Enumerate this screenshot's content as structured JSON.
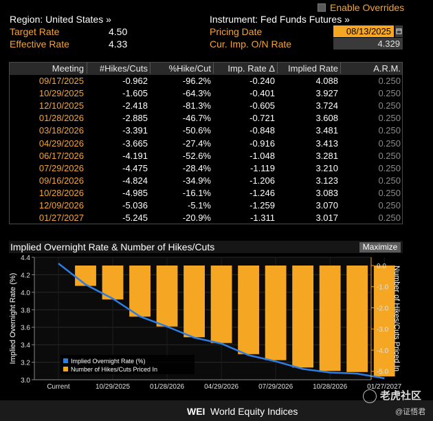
{
  "header": {
    "region_label": "Region: United States »",
    "target_rate_label": "Target Rate",
    "target_rate_value": "4.50",
    "effective_rate_label": "Effective Rate",
    "effective_rate_value": "4.33",
    "instrument_label": "Instrument: Fed Funds Futures »",
    "enable_overrides_label": "Enable Overrides",
    "pricing_date_label": "Pricing Date",
    "pricing_date_value": "08/13/2025",
    "cur_imp_label": "Cur. Imp. O/N Rate",
    "cur_imp_value": "4.329"
  },
  "table": {
    "columns": [
      "Meeting",
      "#Hikes/Cuts",
      "%Hike/Cut",
      "Imp. Rate Δ",
      "Implied Rate",
      "A.R.M."
    ],
    "rows": [
      {
        "meeting": "09/17/2025",
        "hikes": "-0.962",
        "pct": "-96.2%",
        "delta": "-0.240",
        "implied": "4.088",
        "arm": "0.250"
      },
      {
        "meeting": "10/29/2025",
        "hikes": "-1.605",
        "pct": "-64.3%",
        "delta": "-0.401",
        "implied": "3.927",
        "arm": "0.250"
      },
      {
        "meeting": "12/10/2025",
        "hikes": "-2.418",
        "pct": "-81.3%",
        "delta": "-0.605",
        "implied": "3.724",
        "arm": "0.250"
      },
      {
        "meeting": "01/28/2026",
        "hikes": "-2.885",
        "pct": "-46.7%",
        "delta": "-0.721",
        "implied": "3.608",
        "arm": "0.250"
      },
      {
        "meeting": "03/18/2026",
        "hikes": "-3.391",
        "pct": "-50.6%",
        "delta": "-0.848",
        "implied": "3.481",
        "arm": "0.250"
      },
      {
        "meeting": "04/29/2026",
        "hikes": "-3.665",
        "pct": "-27.4%",
        "delta": "-0.916",
        "implied": "3.413",
        "arm": "0.250"
      },
      {
        "meeting": "06/17/2026",
        "hikes": "-4.191",
        "pct": "-52.6%",
        "delta": "-1.048",
        "implied": "3.281",
        "arm": "0.250"
      },
      {
        "meeting": "07/29/2026",
        "hikes": "-4.475",
        "pct": "-28.4%",
        "delta": "-1.119",
        "implied": "3.210",
        "arm": "0.250"
      },
      {
        "meeting": "09/16/2026",
        "hikes": "-4.824",
        "pct": "-34.9%",
        "delta": "-1.206",
        "implied": "3.123",
        "arm": "0.250"
      },
      {
        "meeting": "10/28/2026",
        "hikes": "-4.985",
        "pct": "-16.1%",
        "delta": "-1.246",
        "implied": "3.083",
        "arm": "0.250"
      },
      {
        "meeting": "12/09/2026",
        "hikes": "-5.036",
        "pct": "-5.1%",
        "delta": "-1.259",
        "implied": "3.070",
        "arm": "0.250"
      },
      {
        "meeting": "01/27/2027",
        "hikes": "-5.245",
        "pct": "-20.9%",
        "delta": "-1.311",
        "implied": "3.017",
        "arm": "0.250"
      }
    ]
  },
  "chart_section": {
    "title": "Implied Overnight Rate & Number of Hikes/Cuts",
    "maximize_label": "Maximize"
  },
  "chart_data": {
    "type": "bar",
    "title": "Implied Overnight Rate & Number of Hikes/Cuts",
    "ylabel": "Implied Overnight Rate (%)",
    "ylabel_right": "Number of Hikes/Cuts Priced In",
    "categories": [
      "Current",
      "09/17/2025",
      "10/29/2025",
      "12/10/2025",
      "01/28/2026",
      "03/18/2026",
      "04/29/2026",
      "06/17/2026",
      "07/29/2026",
      "09/16/2026",
      "10/28/2026",
      "12/09/2026",
      "01/27/2027"
    ],
    "x_tick_labels": [
      "Current",
      "10/29/2025",
      "01/28/2026",
      "04/29/2026",
      "07/29/2026",
      "10/28/2026",
      "01/27/2027"
    ],
    "x_tick_categories": [
      "Current",
      "10/29/2025",
      "01/28/2026",
      "04/29/2026",
      "07/29/2026",
      "10/28/2026",
      "01/27/2027"
    ],
    "series": [
      {
        "name": "Implied Overnight Rate (%)",
        "axis": "left",
        "kind": "line",
        "color": "#2f7de1",
        "values": [
          4.329,
          4.088,
          3.927,
          3.724,
          3.608,
          3.481,
          3.413,
          3.281,
          3.21,
          3.123,
          3.083,
          3.07,
          3.017
        ]
      },
      {
        "name": "Number of Hikes/Cuts Priced In",
        "axis": "right",
        "kind": "bar",
        "color": "#f5a623",
        "values": [
          0,
          -0.962,
          -1.605,
          -2.418,
          -2.885,
          -3.391,
          -3.665,
          -4.191,
          -4.475,
          -4.824,
          -4.985,
          -5.036,
          -5.245
        ]
      }
    ],
    "ylim_left": [
      3.0,
      4.4
    ],
    "yticks_left": [
      "3.0",
      "3.2",
      "3.4",
      "3.6",
      "3.8",
      "4.0",
      "4.2",
      "4.4"
    ],
    "ylim_right": [
      -5.4,
      0.0
    ],
    "yticks_right": [
      "0.0",
      "-1.0",
      "-2.0",
      "-3.0",
      "-4.0",
      "-5.0"
    ],
    "legend_position": "bottom-left",
    "grid": true
  },
  "footer": {
    "brand": "WEI",
    "label": "World Equity Indices"
  },
  "watermark": {
    "text1": "老虎社区",
    "text2": "@证悟君"
  }
}
